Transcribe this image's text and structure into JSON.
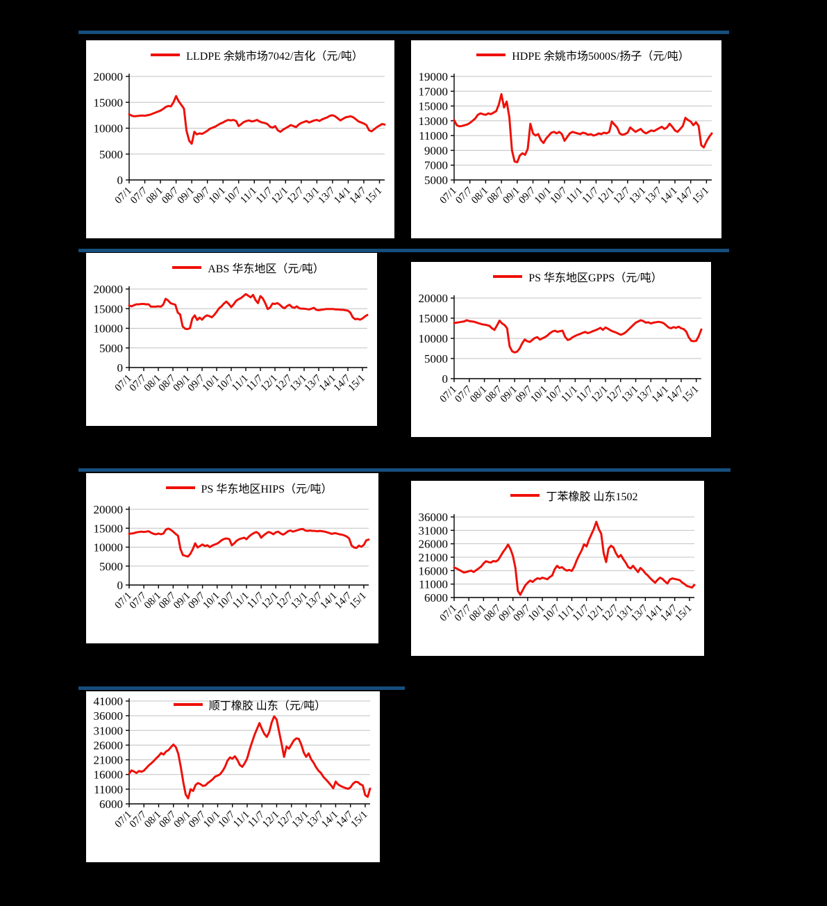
{
  "colors": {
    "background": "#000000",
    "panel": "#ffffff",
    "separator": "#164e7d",
    "line": "#ee1008",
    "grid": "#c0c0c0",
    "text": "#000000"
  },
  "chart_data": [
    {
      "type": "line",
      "title": "LLDPE 余姚市场7042/吉化（元/吨）",
      "ylim": [
        0,
        20000
      ],
      "y_ticks": [
        0,
        5000,
        10000,
        15000,
        20000
      ],
      "x_tick_labels": [
        "07/1",
        "07/7",
        "08/1",
        "08/7",
        "09/1",
        "09/7",
        "10/1",
        "10/7",
        "11/1",
        "11/7",
        "12/1",
        "12/7",
        "13/1",
        "13/7",
        "14/1",
        "14/7",
        "15/1"
      ],
      "x_tick_step_months": 6,
      "values": [
        12700,
        12400,
        12300,
        12350,
        12400,
        12450,
        12400,
        12500,
        12600,
        12800,
        13000,
        13200,
        13400,
        13700,
        14100,
        14300,
        14200,
        15000,
        16200,
        15200,
        14500,
        13800,
        9500,
        7600,
        7000,
        9300,
        8800,
        9000,
        8900,
        9200,
        9500,
        9900,
        10100,
        10300,
        10600,
        10900,
        11100,
        11400,
        11600,
        11500,
        11600,
        11400,
        10400,
        10800,
        11200,
        11400,
        11500,
        11300,
        11400,
        11600,
        11300,
        11100,
        11000,
        10800,
        10300,
        10100,
        10400,
        9600,
        9300,
        9700,
        10000,
        10300,
        10600,
        10400,
        10200,
        10700,
        11000,
        11200,
        11400,
        11100,
        11300,
        11500,
        11600,
        11400,
        11700,
        11900,
        12100,
        12400,
        12500,
        12300,
        11900,
        11500,
        11800,
        12100,
        12200,
        12300,
        12100,
        11700,
        11300,
        11100,
        10900,
        10600,
        9600,
        9400,
        9800,
        10200,
        10500,
        10800,
        10700
      ]
    },
    {
      "type": "line",
      "title": "HDPE 余姚市场5000S/扬子（元/吨）",
      "ylim": [
        5000,
        19000
      ],
      "y_ticks": [
        5000,
        7000,
        9000,
        11000,
        13000,
        15000,
        17000,
        19000
      ],
      "x_tick_labels": [
        "07/1",
        "07/7",
        "08/1",
        "08/7",
        "09/1",
        "09/7",
        "10/1",
        "10/7",
        "11/1",
        "11/7",
        "12/1",
        "12/7",
        "13/1",
        "13/7",
        "14/1",
        "14/7",
        "15/1"
      ],
      "x_tick_step_months": 6,
      "values": [
        13100,
        12400,
        12250,
        12300,
        12400,
        12500,
        12700,
        13000,
        13300,
        13800,
        14000,
        13900,
        13800,
        14000,
        13900,
        14100,
        14300,
        15200,
        16600,
        14800,
        15600,
        13500,
        9000,
        7500,
        7400,
        8300,
        8600,
        8400,
        9200,
        12600,
        11300,
        11000,
        11200,
        10400,
        10000,
        10600,
        11000,
        11400,
        11500,
        11300,
        11500,
        11200,
        10300,
        10800,
        11300,
        11500,
        11400,
        11300,
        11200,
        11400,
        11300,
        11100,
        11200,
        11000,
        11100,
        11300,
        11200,
        11400,
        11300,
        11500,
        12900,
        12500,
        12100,
        11300,
        11100,
        11200,
        11400,
        12100,
        11800,
        11500,
        11700,
        11900,
        11500,
        11300,
        11500,
        11700,
        11600,
        11800,
        12000,
        12200,
        11900,
        12100,
        12600,
        12200,
        11700,
        11500,
        11900,
        12300,
        13400,
        13100,
        12900,
        12400,
        12800,
        12300,
        9700,
        9400,
        10200,
        10800,
        11300
      ]
    },
    {
      "type": "line",
      "title": "ABS 华东地区（元/吨）",
      "ylim": [
        0,
        20000
      ],
      "y_ticks": [
        0,
        5000,
        10000,
        15000,
        20000
      ],
      "x_tick_labels": [
        "07/1",
        "07/7",
        "08/1",
        "08/7",
        "09/1",
        "09/7",
        "10/1",
        "10/7",
        "11/1",
        "11/7",
        "12/1",
        "12/7",
        "13/1",
        "13/7",
        "14/1",
        "14/7",
        "15/1"
      ],
      "x_tick_step_months": 6,
      "values": [
        15800,
        15600,
        15900,
        16100,
        16100,
        16200,
        16200,
        16100,
        16100,
        15500,
        15500,
        15500,
        15600,
        15500,
        16000,
        17500,
        17100,
        16400,
        16200,
        16000,
        14000,
        13500,
        10500,
        9900,
        9800,
        10000,
        12500,
        13300,
        12100,
        12700,
        12200,
        12900,
        13300,
        13100,
        12800,
        13400,
        14200,
        15100,
        15600,
        16300,
        16800,
        16200,
        15400,
        16100,
        17000,
        17400,
        17700,
        18200,
        18700,
        18300,
        17900,
        18500,
        17200,
        16400,
        18200,
        17600,
        16400,
        14900,
        15300,
        16300,
        16200,
        16400,
        16000,
        15400,
        15100,
        15700,
        16000,
        15400,
        15200,
        15600,
        15100,
        15000,
        15000,
        14900,
        14800,
        15000,
        15200,
        14700,
        14600,
        14700,
        14800,
        14900,
        14900,
        14900,
        14900,
        14800,
        14800,
        14700,
        14700,
        14600,
        14500,
        14000,
        12800,
        12300,
        12400,
        12200,
        12500,
        13000,
        13400
      ]
    },
    {
      "type": "line",
      "title": "PS 华东地区GPPS（元/吨）",
      "ylim": [
        0,
        20000
      ],
      "y_ticks": [
        0,
        5000,
        10000,
        15000,
        20000
      ],
      "x_tick_labels": [
        "07/1",
        "07/7",
        "08/1",
        "08/7",
        "09/1",
        "09/7",
        "10/1",
        "10/7",
        "11/1",
        "11/7",
        "12/1",
        "12/7",
        "13/1",
        "13/7",
        "14/1",
        "14/7",
        "15/1"
      ],
      "x_tick_step_months": 6,
      "values": [
        13800,
        13900,
        14000,
        14100,
        14200,
        14500,
        14300,
        14200,
        14100,
        13900,
        13700,
        13500,
        13400,
        13300,
        13100,
        12500,
        12100,
        13200,
        14400,
        13700,
        13300,
        12500,
        8000,
        6800,
        6500,
        6700,
        7500,
        8800,
        9700,
        9300,
        9100,
        9600,
        10100,
        10300,
        9700,
        10000,
        10300,
        10700,
        11300,
        11700,
        11900,
        11600,
        11800,
        11900,
        10400,
        9600,
        9800,
        10300,
        10600,
        10900,
        11100,
        11400,
        11600,
        11300,
        11500,
        11800,
        12000,
        12300,
        12600,
        12100,
        12700,
        12400,
        12000,
        11700,
        11500,
        11200,
        10900,
        11100,
        11500,
        12100,
        12700,
        13300,
        13900,
        14200,
        14500,
        14300,
        13900,
        14000,
        13700,
        13900,
        14000,
        14100,
        14000,
        13800,
        13300,
        12700,
        12500,
        12800,
        12600,
        12900,
        12500,
        12300,
        11700,
        10300,
        9400,
        9300,
        9400,
        10600,
        12200
      ]
    },
    {
      "type": "line",
      "title": "PS 华东地区HIPS（元/吨）",
      "ylim": [
        0,
        20000
      ],
      "y_ticks": [
        0,
        5000,
        10000,
        15000,
        20000
      ],
      "x_tick_labels": [
        "07/1",
        "07/7",
        "08/1",
        "08/7",
        "09/1",
        "09/7",
        "10/1",
        "10/7",
        "11/1",
        "11/7",
        "12/1",
        "12/7",
        "13/1",
        "13/7",
        "14/1",
        "14/7",
        "15/1"
      ],
      "x_tick_step_months": 6,
      "values": [
        13500,
        13600,
        13700,
        13900,
        14000,
        14100,
        14000,
        14100,
        14200,
        13800,
        13500,
        13400,
        13600,
        13400,
        13600,
        14600,
        14900,
        14600,
        14100,
        13500,
        13000,
        9500,
        7900,
        7700,
        7500,
        8200,
        9400,
        11000,
        9900,
        10300,
        10700,
        10300,
        10500,
        10000,
        10400,
        10700,
        10900,
        11400,
        11900,
        12200,
        12300,
        12100,
        10500,
        11000,
        11700,
        12100,
        12300,
        12500,
        12100,
        12800,
        13300,
        13700,
        14000,
        13600,
        12500,
        13100,
        13600,
        14000,
        13800,
        13400,
        13900,
        14100,
        13600,
        13300,
        13700,
        14200,
        14400,
        14100,
        14300,
        14500,
        14700,
        14800,
        14400,
        14300,
        14400,
        14300,
        14300,
        14200,
        14300,
        14200,
        14100,
        13900,
        13700,
        13500,
        13700,
        13600,
        13400,
        13300,
        13100,
        12800,
        12300,
        10400,
        9900,
        9800,
        10400,
        10100,
        10600,
        11800,
        12000
      ]
    },
    {
      "type": "line",
      "title": "丁苯橡胶 山东1502",
      "ylim": [
        6000,
        36000
      ],
      "y_ticks": [
        6000,
        11000,
        16000,
        21000,
        26000,
        31000,
        36000
      ],
      "x_tick_labels": [
        "07/1",
        "07/7",
        "08/1",
        "08/7",
        "09/1",
        "09/7",
        "10/1",
        "10/7",
        "11/1",
        "11/7",
        "12/1",
        "12/7",
        "13/1",
        "13/7",
        "14/1",
        "14/7",
        "15/1"
      ],
      "x_tick_step_months": 6,
      "values": [
        17200,
        16800,
        16300,
        15800,
        15300,
        15500,
        15800,
        16000,
        15500,
        16200,
        16800,
        17500,
        18700,
        19500,
        19200,
        19000,
        19600,
        19400,
        20000,
        21500,
        23000,
        24200,
        25700,
        24000,
        21500,
        17000,
        8500,
        7000,
        8800,
        10500,
        11500,
        12300,
        11800,
        12600,
        13200,
        12900,
        13400,
        13100,
        12800,
        13600,
        14200,
        16500,
        17800,
        17000,
        17300,
        16500,
        16000,
        16300,
        15900,
        17500,
        19800,
        21800,
        23500,
        25800,
        25000,
        27500,
        29500,
        31500,
        34200,
        31500,
        29800,
        22500,
        19200,
        24200,
        25300,
        24600,
        22500,
        21000,
        21800,
        20300,
        19000,
        17300,
        16800,
        17800,
        16600,
        15500,
        17000,
        16200,
        15000,
        14200,
        13200,
        12300,
        11500,
        12600,
        13400,
        12900,
        12000,
        11200,
        12700,
        13100,
        12900,
        12700,
        12500,
        11600,
        11000,
        10300,
        10000,
        9700,
        10700
      ]
    },
    {
      "type": "line",
      "title": "顺丁橡胶 山东（元/吨）",
      "ylim": [
        6000,
        41000
      ],
      "y_ticks": [
        6000,
        11000,
        16000,
        21000,
        26000,
        31000,
        36000,
        41000
      ],
      "x_tick_labels": [
        "07/1",
        "07/7",
        "08/1",
        "08/7",
        "09/1",
        "09/7",
        "10/1",
        "10/7",
        "11/1",
        "11/7",
        "12/1",
        "12/7",
        "13/1",
        "13/7",
        "14/1",
        "14/7",
        "15/1"
      ],
      "x_tick_step_months": 6,
      "values": [
        16300,
        17400,
        17000,
        16500,
        17200,
        16900,
        17300,
        18200,
        19100,
        19800,
        20600,
        21500,
        22300,
        23300,
        22800,
        23800,
        24300,
        25300,
        26200,
        25300,
        23000,
        18500,
        13500,
        9200,
        7900,
        11000,
        10400,
        12400,
        13100,
        12700,
        12100,
        12300,
        13100,
        13700,
        14400,
        15300,
        15600,
        16100,
        17200,
        18600,
        20700,
        21800,
        21400,
        22200,
        21000,
        19300,
        18600,
        19800,
        21500,
        24500,
        27000,
        29500,
        31500,
        33500,
        31500,
        29800,
        28800,
        30500,
        33800,
        35800,
        34700,
        30500,
        26500,
        22000,
        25500,
        24800,
        26200,
        27600,
        28300,
        28100,
        26200,
        23500,
        22000,
        23200,
        21200,
        20000,
        18500,
        17300,
        16500,
        15200,
        14300,
        13400,
        12400,
        11300,
        13600,
        12600,
        12100,
        11700,
        11400,
        11100,
        11600,
        12800,
        13500,
        13400,
        12700,
        12300,
        9000,
        8400,
        11200
      ]
    }
  ]
}
